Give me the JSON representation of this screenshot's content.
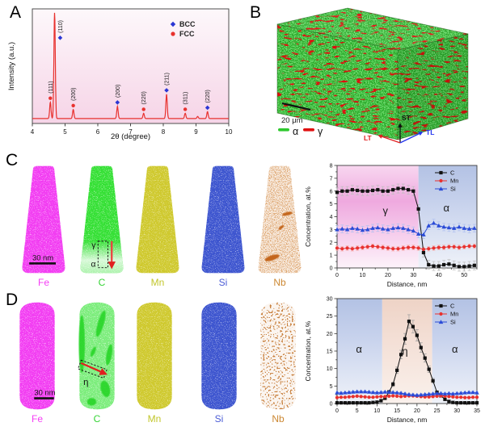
{
  "panels": {
    "a": "A",
    "b": "B",
    "c": "C",
    "d": "D"
  },
  "panel_b": {
    "scale_bar": "20 μm",
    "legend": [
      {
        "label": "α",
        "color": "#2ec82e"
      },
      {
        "label": "γ",
        "color": "#e01010"
      }
    ],
    "axes": [
      {
        "label": "ST",
        "color": "#111111"
      },
      {
        "label": "LT",
        "color": "#e02020"
      },
      {
        "label": "TL",
        "color": "#2233ee"
      }
    ]
  },
  "panel_c": {
    "scale_bar": "30 nm",
    "maps": [
      {
        "element": "Fe",
        "color": "#f23ef2"
      },
      {
        "element": "C",
        "color": "#35e035",
        "annotations": {
          "gamma": "γ",
          "alpha": "α"
        }
      },
      {
        "element": "Mn",
        "color": "#cfc92f"
      },
      {
        "element": "Si",
        "color": "#3d55cf"
      },
      {
        "element": "Nb",
        "color": "#dca26a"
      }
    ]
  },
  "panel_d": {
    "scale_bar": "30 nm",
    "maps": [
      {
        "element": "Fe",
        "color": "#f23ef2"
      },
      {
        "element": "C",
        "color": "#55e855",
        "annotations": {
          "eta": "η"
        }
      },
      {
        "element": "Mn",
        "color": "#cfc92f"
      },
      {
        "element": "Si",
        "color": "#3d55cf"
      },
      {
        "element": "Nb",
        "color": "#c8803c"
      }
    ]
  },
  "chart_data": [
    {
      "id": "xrd",
      "type": "line",
      "xlabel": "2θ (degree)",
      "ylabel": "Intensity (a.u.)",
      "xlim": [
        4,
        10
      ],
      "xticks": [
        4,
        5,
        6,
        7,
        8,
        9,
        10
      ],
      "line_color": "#e8312e",
      "bg_gradient": [
        "#fdf8fb",
        "#f6d4e7"
      ],
      "legend": [
        {
          "label": "BCC",
          "marker": "diamond",
          "color": "#2a35d4"
        },
        {
          "label": "FCC",
          "marker": "circle",
          "color": "#e8312e"
        }
      ],
      "peaks": [
        {
          "two_theta": 4.55,
          "rel_height": 0.155,
          "hkl": "(111)",
          "phase": "FCC"
        },
        {
          "two_theta": 4.68,
          "rel_height": 1.0,
          "hkl": "(110)",
          "phase": "BCC"
        },
        {
          "two_theta": 5.25,
          "rel_height": 0.085,
          "hkl": "(200)",
          "phase": "FCC"
        },
        {
          "two_theta": 6.6,
          "rel_height": 0.115,
          "hkl": "(200)",
          "phase": "BCC"
        },
        {
          "two_theta": 7.4,
          "rel_height": 0.05,
          "hkl": "(220)",
          "phase": "FCC"
        },
        {
          "two_theta": 8.1,
          "rel_height": 0.23,
          "hkl": "(211)",
          "phase": "BCC"
        },
        {
          "two_theta": 8.67,
          "rel_height": 0.05,
          "hkl": "(311)",
          "phase": "FCC"
        },
        {
          "two_theta": 9.05,
          "rel_height": 0.02,
          "hkl": "",
          "phase": ""
        },
        {
          "two_theta": 9.35,
          "rel_height": 0.065,
          "hkl": "(220)",
          "phase": "BCC"
        }
      ]
    },
    {
      "id": "profile_c",
      "type": "line",
      "xlabel": "Distance, nm",
      "ylabel": "Concentration, at.%",
      "xlim": [
        0,
        55
      ],
      "ylim": [
        0,
        8
      ],
      "xticks": [
        0,
        10,
        20,
        30,
        40,
        50
      ],
      "yticks": [
        0,
        1,
        2,
        3,
        4,
        5,
        6,
        7,
        8
      ],
      "regions": [
        {
          "label": "γ",
          "from": 0,
          "to": 32,
          "colors": [
            "#f8d7f0",
            "#efa9df",
            "#fdf3fa"
          ],
          "label_x": 19,
          "label_y": 4.2
        },
        {
          "label": "α",
          "from": 32,
          "to": 55,
          "colors": [
            "#b3c2e4",
            "#c6d1ec",
            "#eff2f9"
          ],
          "label_x": 43,
          "label_y": 4.4
        }
      ],
      "x": [
        0,
        2,
        4,
        6,
        8,
        10,
        12,
        14,
        16,
        18,
        20,
        22,
        24,
        26,
        28,
        30,
        32,
        34,
        36,
        38,
        40,
        42,
        44,
        46,
        48,
        50,
        52,
        54
      ],
      "series": [
        {
          "name": "C",
          "color": "#111111",
          "marker": "square",
          "err": 0.35,
          "err_color": "#bdbdbd",
          "values": [
            5.9,
            6.0,
            6.0,
            6.1,
            6.05,
            6.0,
            6.0,
            6.05,
            6.1,
            6.0,
            6.0,
            6.1,
            6.2,
            6.2,
            6.1,
            6.0,
            4.6,
            1.2,
            0.25,
            0.15,
            0.15,
            0.25,
            0.3,
            0.2,
            0.1,
            0.1,
            0.15,
            0.2
          ]
        },
        {
          "name": "Mn",
          "color": "#e8312e",
          "marker": "circle",
          "err": 0.18,
          "err_color": "#f5b0ae",
          "values": [
            1.55,
            1.5,
            1.55,
            1.5,
            1.55,
            1.6,
            1.65,
            1.7,
            1.65,
            1.6,
            1.55,
            1.5,
            1.5,
            1.55,
            1.6,
            1.6,
            1.55,
            1.45,
            1.5,
            1.55,
            1.6,
            1.6,
            1.65,
            1.65,
            1.6,
            1.65,
            1.7,
            1.7
          ]
        },
        {
          "name": "Si",
          "color": "#2a4bd7",
          "marker": "triangle",
          "err": 0.3,
          "err_color": "#afc0f0",
          "values": [
            3.0,
            3.05,
            3.0,
            3.1,
            3.05,
            2.95,
            3.0,
            3.1,
            3.15,
            3.05,
            3.0,
            3.1,
            3.15,
            3.1,
            3.0,
            2.9,
            2.65,
            2.6,
            3.3,
            3.5,
            3.3,
            3.2,
            3.15,
            3.1,
            3.2,
            3.1,
            3.05,
            3.1
          ]
        }
      ]
    },
    {
      "id": "profile_d",
      "type": "line",
      "xlabel": "Distance, nm",
      "ylabel": "Concentration, at.%",
      "xlim": [
        0,
        35
      ],
      "ylim": [
        0,
        30
      ],
      "xticks": [
        0,
        5,
        10,
        15,
        20,
        25,
        30,
        35
      ],
      "yticks": [
        0,
        5,
        10,
        15,
        20,
        25,
        30
      ],
      "regions": [
        {
          "label": "α",
          "from": 0,
          "to": 11.3,
          "colors": [
            "#b3c2e4",
            "#c6d1ec",
            "#eff2f9"
          ],
          "label_x": 5.5,
          "label_y": 14.5
        },
        {
          "label": "η",
          "from": 11.3,
          "to": 23.8,
          "colors": [
            "#eed3c6",
            "#f3ded4",
            "#faf1ec"
          ],
          "label_x": 17,
          "label_y": 14
        },
        {
          "label": "α",
          "from": 23.8,
          "to": 35,
          "colors": [
            "#b3c2e4",
            "#c6d1ec",
            "#eff2f9"
          ],
          "label_x": 29.5,
          "label_y": 14.5
        }
      ],
      "x": [
        0,
        1,
        2,
        3,
        4,
        5,
        6,
        7,
        8,
        9,
        10,
        11,
        12,
        13,
        14,
        15,
        16,
        17,
        18,
        19,
        20,
        21,
        22,
        23,
        24,
        25,
        26,
        27,
        28,
        29,
        30,
        31,
        32,
        33,
        34,
        35
      ],
      "series": [
        {
          "name": "C",
          "color": "#111111",
          "marker": "square",
          "err": {
            "base": 0.25,
            "frac": 0.07
          },
          "err_color": "#9e9e9e",
          "values": [
            0.2,
            0.2,
            0.2,
            0.2,
            0.2,
            0.2,
            0.2,
            0.2,
            0.2,
            0.3,
            0.4,
            0.8,
            1.5,
            3.3,
            5.5,
            9.5,
            14.0,
            18.5,
            23.5,
            22.0,
            19.5,
            16.0,
            13.0,
            9.8,
            6.5,
            3.2,
            2.2,
            1.2,
            0.6,
            0.3,
            0.2,
            0.2,
            0.2,
            0.2,
            0.2,
            0.2
          ]
        },
        {
          "name": "Mn",
          "color": "#e8312e",
          "marker": "circle",
          "err": 0.2,
          "err_color": "#f5b0ae",
          "values": [
            1.7,
            1.8,
            1.8,
            1.9,
            2.0,
            2.1,
            2.0,
            1.9,
            1.8,
            1.8,
            1.9,
            2.0,
            2.0,
            2.1,
            2.2,
            2.1,
            2.0,
            2.1,
            2.2,
            2.2,
            2.1,
            2.0,
            1.9,
            1.9,
            2.0,
            2.1,
            2.2,
            2.1,
            2.0,
            1.9,
            1.8,
            1.8,
            1.7,
            1.7,
            1.8,
            1.8
          ]
        },
        {
          "name": "Si",
          "color": "#2a4bd7",
          "marker": "triangle",
          "err": 0.3,
          "err_color": "#afc0f0",
          "values": [
            3.1,
            3.0,
            3.1,
            3.2,
            3.3,
            3.4,
            3.4,
            3.4,
            3.3,
            3.2,
            3.1,
            3.2,
            3.3,
            3.3,
            3.2,
            3.1,
            3.0,
            2.8,
            2.6,
            2.5,
            2.4,
            2.5,
            2.6,
            2.7,
            2.8,
            2.9,
            2.9,
            2.8,
            2.9,
            2.8,
            2.9,
            3.0,
            3.1,
            3.2,
            3.2,
            3.1
          ]
        }
      ]
    }
  ]
}
